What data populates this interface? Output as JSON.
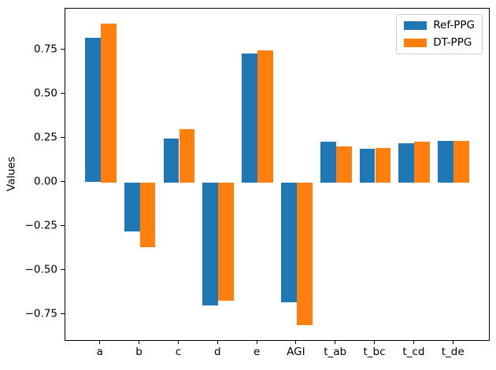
{
  "chart_data": {
    "type": "bar",
    "title": "",
    "xlabel": "",
    "ylabel": "Values",
    "categories": [
      "a",
      "b",
      "c",
      "d",
      "e",
      "AGI",
      "t_ab",
      "t_bc",
      "t_cd",
      "t_de"
    ],
    "series": [
      {
        "name": "Ref-PPG",
        "color": "#1f77b4",
        "values": [
          0.82,
          -0.28,
          0.25,
          -0.7,
          0.73,
          -0.68,
          0.23,
          0.19,
          0.22,
          0.235
        ]
      },
      {
        "name": "DT-PPG",
        "color": "#ff7f0e",
        "values": [
          0.9,
          -0.37,
          0.3,
          -0.67,
          0.75,
          -0.81,
          0.205,
          0.195,
          0.23,
          0.235
        ]
      }
    ],
    "bar_width": 0.4,
    "xlim": [
      -0.9,
      9.9
    ],
    "ylim": [
      -0.895,
      0.985
    ],
    "yticks": [
      {
        "value": 0.75,
        "label": "0.75"
      },
      {
        "value": 0.5,
        "label": "0.50"
      },
      {
        "value": 0.25,
        "label": "0.25"
      },
      {
        "value": 0.0,
        "label": "0.00"
      },
      {
        "value": -0.25,
        "label": "−0.25"
      },
      {
        "value": -0.5,
        "label": "−0.50"
      },
      {
        "value": -0.75,
        "label": "−0.75"
      }
    ],
    "grid": false,
    "legend_position": "upper right",
    "colors": {
      "spine": "#000000",
      "legend_border": "#cccccc",
      "background": "#ffffff"
    }
  }
}
